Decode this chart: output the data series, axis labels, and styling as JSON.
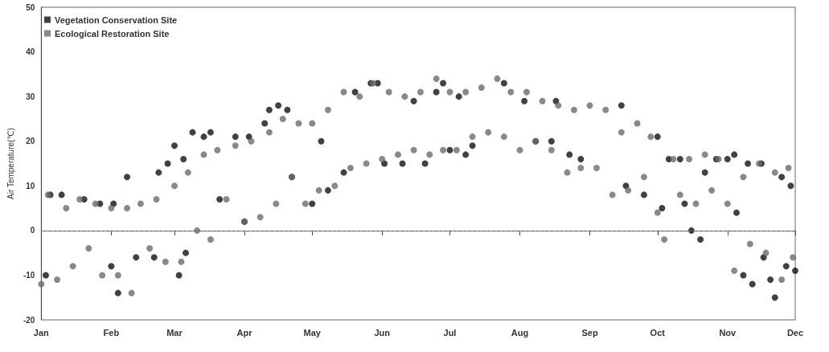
{
  "chart_data": {
    "type": "scatter",
    "ylabel": "Air Temperature(℃)",
    "legend": "top left",
    "marker": "circle",
    "grid": false,
    "xlim": [
      "--01-01",
      "--12-01"
    ],
    "xticks": [
      {
        "value": "--01-01",
        "label": "Jan"
      },
      {
        "value": "--02-01",
        "label": "Feb"
      },
      {
        "value": "--03-01",
        "label": "Mar"
      },
      {
        "value": "--04-01",
        "label": "Apr"
      },
      {
        "value": "--05-01",
        "label": "May"
      },
      {
        "value": "--06-01",
        "label": "Jun"
      },
      {
        "value": "--07-01",
        "label": "Jul"
      },
      {
        "value": "--08-01",
        "label": "Aug"
      },
      {
        "value": "--09-01",
        "label": "Sep"
      },
      {
        "value": "--10-01",
        "label": "Oct"
      },
      {
        "value": "--11-01",
        "label": "Nov"
      },
      {
        "value": "--12-01",
        "label": "Dec"
      }
    ],
    "ylim": [
      -20,
      50
    ],
    "yticks": [
      -20,
      -10,
      0,
      10,
      20,
      30,
      40,
      50
    ],
    "ref_lines": [
      {
        "axis": "y",
        "value": 0,
        "label": null,
        "color": "#777777",
        "line_style": "dashed"
      }
    ],
    "series": [
      {
        "name": "Vegetation Conservation Site",
        "color": "#111111",
        "x": [
          "--01-03",
          "--01-05",
          "--01-10",
          "--01-20",
          "--01-27",
          "--02-01",
          "--02-02",
          "--02-04",
          "--02-08",
          "--02-12",
          "--02-20",
          "--02-22",
          "--02-26",
          "--03-01",
          "--03-03",
          "--03-05",
          "--03-06",
          "--03-09",
          "--03-14",
          "--03-17",
          "--03-21",
          "--03-28",
          "--04-01",
          "--04-03",
          "--04-10",
          "--04-12",
          "--04-16",
          "--04-20",
          "--04-22",
          "--05-01",
          "--05-05",
          "--05-08",
          "--05-15",
          "--05-20",
          "--05-27",
          "--05-30",
          "--06-02",
          "--06-10",
          "--06-15",
          "--06-20",
          "--06-25",
          "--06-28",
          "--07-01",
          "--07-05",
          "--07-08",
          "--07-11",
          "--07-25",
          "--08-03",
          "--08-08",
          "--08-15",
          "--08-17",
          "--08-23",
          "--08-28",
          "--09-15",
          "--09-17",
          "--09-25",
          "--10-01",
          "--10-03",
          "--10-06",
          "--10-11",
          "--10-13",
          "--10-16",
          "--10-20",
          "--10-22",
          "--10-27",
          "--11-01",
          "--11-04",
          "--11-05",
          "--11-08",
          "--11-10",
          "--11-12",
          "--11-16",
          "--11-17",
          "--11-20",
          "--11-22",
          "--11-25",
          "--11-27",
          "--11-29",
          "--12-01"
        ],
        "values": [
          -10,
          8,
          8,
          7,
          6,
          -8,
          6,
          -14,
          12,
          -6,
          -6,
          13,
          15,
          19,
          -10,
          16,
          -5,
          22,
          21,
          22,
          7,
          21,
          2,
          21,
          24,
          27,
          28,
          27,
          12,
          6,
          20,
          9,
          13,
          31,
          33,
          33,
          15,
          15,
          29,
          15,
          31,
          33,
          18,
          30,
          17,
          19,
          33,
          29,
          20,
          20,
          29,
          17,
          16,
          28,
          10,
          8,
          21,
          5,
          16,
          16,
          6,
          0,
          -2,
          13,
          16,
          16,
          17,
          4,
          -10,
          15,
          -12,
          15,
          -6,
          -11,
          -15,
          12,
          -8,
          10,
          -9
        ]
      },
      {
        "name": "Ecological Restoration Site",
        "color": "#6b6b6b",
        "x": [
          "--01-01",
          "--01-04",
          "--01-08",
          "--01-12",
          "--01-15",
          "--01-18",
          "--01-22",
          "--01-25",
          "--01-28",
          "--02-01",
          "--02-04",
          "--02-08",
          "--02-10",
          "--02-14",
          "--02-18",
          "--02-21",
          "--02-25",
          "--03-01",
          "--03-04",
          "--03-07",
          "--03-11",
          "--03-14",
          "--03-17",
          "--03-20",
          "--03-24",
          "--03-28",
          "--04-01",
          "--04-04",
          "--04-08",
          "--04-12",
          "--04-15",
          "--04-18",
          "--04-22",
          "--04-25",
          "--04-28",
          "--05-01",
          "--05-04",
          "--05-08",
          "--05-11",
          "--05-15",
          "--05-18",
          "--05-22",
          "--05-25",
          "--05-28",
          "--06-01",
          "--06-04",
          "--06-08",
          "--06-11",
          "--06-15",
          "--06-18",
          "--06-22",
          "--06-25",
          "--06-28",
          "--07-01",
          "--07-04",
          "--07-08",
          "--07-11",
          "--07-15",
          "--07-18",
          "--07-22",
          "--07-25",
          "--07-28",
          "--08-01",
          "--08-04",
          "--08-08",
          "--08-11",
          "--08-15",
          "--08-18",
          "--08-22",
          "--08-25",
          "--08-28",
          "--09-01",
          "--09-04",
          "--09-08",
          "--09-11",
          "--09-15",
          "--09-18",
          "--09-22",
          "--09-25",
          "--09-28",
          "--10-01",
          "--10-04",
          "--10-08",
          "--10-11",
          "--10-15",
          "--10-18",
          "--10-22",
          "--10-25",
          "--10-28",
          "--11-01",
          "--11-04",
          "--11-08",
          "--11-11",
          "--11-15",
          "--11-18",
          "--11-22",
          "--11-25",
          "--11-28",
          "--11-30"
        ],
        "values": [
          -12,
          8,
          -11,
          5,
          -8,
          7,
          -4,
          6,
          -10,
          5,
          -10,
          5,
          -14,
          6,
          -4,
          7,
          -7,
          10,
          -7,
          13,
          0,
          17,
          -2,
          18,
          7,
          19,
          2,
          20,
          3,
          22,
          6,
          25,
          12,
          24,
          6,
          24,
          9,
          27,
          10,
          31,
          14,
          30,
          15,
          33,
          16,
          31,
          17,
          30,
          18,
          31,
          17,
          34,
          18,
          31,
          18,
          31,
          21,
          32,
          22,
          34,
          21,
          31,
          18,
          31,
          20,
          29,
          18,
          28,
          13,
          27,
          14,
          28,
          14,
          27,
          8,
          22,
          9,
          24,
          12,
          21,
          4,
          -2,
          16,
          8,
          16,
          6,
          17,
          9,
          16,
          6,
          -9,
          12,
          -3,
          15,
          -5,
          13,
          -11,
          14,
          -6
        ]
      }
    ]
  }
}
